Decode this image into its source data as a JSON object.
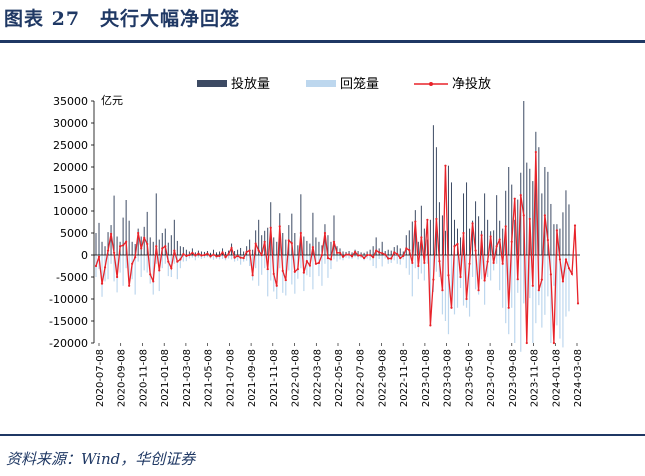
{
  "figure": {
    "title": "图表 27　央行大幅净回笼",
    "source": "资料来源：Wind，华创证券"
  },
  "colors": {
    "title": "#1f3864",
    "injection": "#3c4a63",
    "withdrawal": "#bdd7ee",
    "net": "#e8232a"
  },
  "chart_data": {
    "type": "bar",
    "unit_label": "亿元",
    "ylim": [
      -20000,
      35000
    ],
    "yticks": [
      35000,
      30000,
      25000,
      20000,
      15000,
      10000,
      5000,
      0,
      -5000,
      -10000,
      -15000,
      -20000
    ],
    "grid": false,
    "legend_position": "top",
    "x_tick_labels": [
      "2020-07-08",
      "2020-09-08",
      "2020-11-08",
      "2021-01-08",
      "2021-03-08",
      "2021-05-08",
      "2021-07-08",
      "2021-09-08",
      "2021-11-08",
      "2022-01-08",
      "2022-03-08",
      "2022-05-08",
      "2022-07-08",
      "2022-09-08",
      "2022-11-08",
      "2023-01-08",
      "2023-03-08",
      "2023-05-08",
      "2023-07-08",
      "2023-09-08",
      "2023-11-08",
      "2024-01-08",
      "2024-03-08"
    ],
    "series": [
      {
        "name": "投放量",
        "kind": "bar",
        "values": [
          5000,
          7300,
          3000,
          2000,
          5200,
          6800,
          13500,
          4200,
          3000,
          8500,
          12500,
          7800,
          3000,
          2500,
          6000,
          4200,
          6400,
          9800,
          4000,
          3000,
          14000,
          3500,
          5000,
          6000,
          2800,
          4500,
          8000,
          3200,
          2000,
          1800,
          1200,
          800,
          1500,
          600,
          1000,
          800,
          700,
          900,
          500,
          1200,
          600,
          800,
          1500,
          700,
          1000,
          2600,
          900,
          1200,
          1600,
          800,
          2000,
          3500,
          1200,
          5600,
          8000,
          4500,
          5500,
          6200,
          12000,
          4000,
          3000,
          9500,
          5000,
          3500,
          6800,
          9400,
          5000,
          2200,
          13800,
          4200,
          3200,
          2600,
          9600,
          4000,
          3000,
          2200,
          7000,
          4500,
          3000,
          9000,
          2000,
          1500,
          800,
          700,
          900,
          600,
          1200,
          900,
          600,
          500,
          800,
          1200,
          2000,
          4000,
          1500,
          3000,
          900,
          1200,
          1000,
          1800,
          2200,
          1500,
          800,
          4500,
          5600,
          7600,
          10200,
          3000,
          11200,
          6000,
          3500,
          8000,
          29500,
          24500,
          12000,
          9000,
          5500,
          20300,
          16500,
          8000,
          6000,
          4000,
          14000,
          16500,
          6000,
          7800,
          12200,
          8800,
          5500,
          14000,
          8000,
          5400,
          5600,
          13600,
          7800,
          6000,
          14600,
          20000,
          16000,
          8000,
          12600,
          18700,
          35000,
          21000,
          19600,
          16800,
          28000,
          24500,
          14000,
          20000,
          18900,
          11600,
          7000,
          7000,
          6000,
          9700,
          14700,
          11500
        ]
      },
      {
        "name": "回笼量",
        "kind": "bar",
        "values": [
          -5000,
          -3200,
          -9500,
          -6000,
          -5500,
          -2000,
          -6000,
          -8500,
          -4000,
          -7000,
          -3000,
          -6500,
          -5500,
          -9000,
          -1500,
          -5000,
          -3500,
          -4000,
          -6500,
          -9000,
          -2000,
          -8200,
          -3000,
          -2000,
          -4800,
          -5000,
          -2000,
          -5500,
          -3000,
          -1500,
          -1400,
          -800,
          -600,
          -1200,
          -600,
          -900,
          -700,
          -500,
          -800,
          -1100,
          -900,
          -1000,
          -900,
          -1200,
          -800,
          -1000,
          -1500,
          -1300,
          -2200,
          -1500,
          -1300,
          -2500,
          -5800,
          -3000,
          -7000,
          -4500,
          -3000,
          -9400,
          -5800,
          -8300,
          -10000,
          -3000,
          -8600,
          -9200,
          -3500,
          -6700,
          -8800,
          -5400,
          -3000,
          -8200,
          -4600,
          -5000,
          -7800,
          -1500,
          -4800,
          -7000,
          -2000,
          -5200,
          -3200,
          -1000,
          -1500,
          -1000,
          -1200,
          -600,
          -800,
          -900,
          -500,
          -1000,
          -700,
          -1200,
          -800,
          -1200,
          -2500,
          -3000,
          -900,
          -2600,
          -800,
          -2000,
          -1800,
          -1200,
          -2000,
          -2200,
          -1000,
          -3000,
          -4500,
          -9400,
          -3000,
          -5500,
          -4200,
          -5800,
          -2000,
          -14500,
          -8400,
          -3800,
          -5000,
          -13500,
          -15000,
          -18000,
          -12000,
          -13500,
          -12000,
          -7500,
          -11500,
          -12000,
          -14000,
          -5000,
          -7800,
          -9000,
          -5500,
          -11300,
          -5000,
          -5800,
          -3500,
          -2000,
          -8000,
          -12000,
          -15500,
          -18000,
          -12000,
          -20000,
          -8600,
          -22000,
          -11000,
          -14500,
          -9800,
          -20000,
          -15500,
          -11400,
          -16500,
          -13600,
          -9400,
          -20000,
          -7000,
          -16000,
          -19000,
          -21000,
          -14000,
          -12800
        ]
      },
      {
        "name": "净投放",
        "kind": "line",
        "values": [
          -2500,
          -400,
          -6500,
          -2800,
          1000,
          4800,
          500,
          -5000,
          2000,
          2200,
          3000,
          -7000,
          -2000,
          -500,
          5000,
          1500,
          3900,
          2500,
          -4400,
          -6000,
          2000,
          -3500,
          1500,
          2000,
          -1500,
          -3000,
          1000,
          -1500,
          -1000,
          200,
          -200,
          0,
          500,
          -100,
          300,
          -100,
          0,
          300,
          -300,
          100,
          -300,
          -200,
          600,
          -500,
          200,
          1600,
          -600,
          -200,
          -600,
          -700,
          700,
          1000,
          -4600,
          2600,
          1000,
          0,
          3000,
          -3200,
          6200,
          -4300,
          -7000,
          6500,
          -3600,
          -5700,
          3300,
          2700,
          -3800,
          -3200,
          5000,
          -4000,
          -1400,
          -2400,
          1800,
          -2000,
          -1800,
          0,
          5000,
          -700,
          -1000,
          3000,
          500,
          500,
          -400,
          100,
          100,
          -300,
          700,
          -100,
          -100,
          -700,
          0,
          0,
          -500,
          1000,
          600,
          400,
          100,
          -800,
          -800,
          600,
          200,
          -700,
          -200,
          1500,
          1100,
          -1800,
          7600,
          -2500,
          4000,
          -1800,
          8000,
          -16000,
          -5600,
          8200,
          -1400,
          -8000,
          20300,
          -4600,
          -12000,
          2000,
          2500,
          -5000,
          5000,
          -10000,
          -2000,
          7200,
          1000,
          -8000,
          4500,
          -5800,
          -1500,
          4200,
          -1800,
          2000,
          3500,
          -2000,
          6500,
          -12000,
          3000,
          12800,
          -5500,
          13600,
          9000,
          -20000,
          8200,
          -7000,
          23400,
          -8000,
          -5600,
          9000,
          3400,
          -4400,
          -20000,
          5600,
          -1000,
          -6000,
          -1000,
          -3000,
          -4300,
          6700,
          -11000
        ]
      }
    ]
  }
}
